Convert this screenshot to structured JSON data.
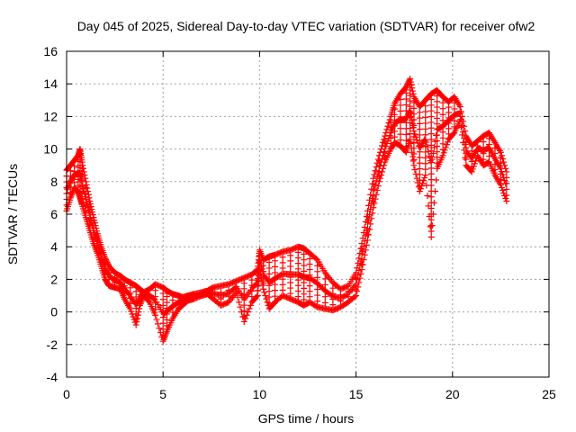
{
  "chart_data": {
    "type": "scatter",
    "title": "Day 045 of 2025, Sidereal Day-to-day VTEC variation (SDTVAR) for receiver ofw2",
    "xlabel": "GPS time / hours",
    "ylabel": "SDTVAR / TECUs",
    "xlim": [
      0,
      25
    ],
    "ylim": [
      -4,
      16
    ],
    "x_ticks": [
      0,
      5,
      10,
      15,
      20,
      25
    ],
    "y_ticks": [
      -4,
      -2,
      0,
      2,
      4,
      6,
      8,
      10,
      12,
      14,
      16
    ],
    "grid": true,
    "marker": "+",
    "color": "#ff0000",
    "series": [
      {
        "name": "SDTVAR",
        "x": [
          0.0,
          0.2,
          0.4,
          0.6,
          0.7,
          0.8,
          1.0,
          1.2,
          1.4,
          1.6,
          1.8,
          2.0,
          2.2,
          2.5,
          2.8,
          3.0,
          3.3,
          3.6,
          3.8,
          4.0,
          4.3,
          4.6,
          5.0,
          5.2,
          5.5,
          5.8,
          6.0,
          6.3,
          6.6,
          7.0,
          7.3,
          7.6,
          8.0,
          8.4,
          8.8,
          9.2,
          9.6,
          9.9,
          10.0,
          10.2,
          10.5,
          10.8,
          11.2,
          11.6,
          12.0,
          12.3,
          12.6,
          13.0,
          13.4,
          13.8,
          14.2,
          14.6,
          15.0,
          15.3,
          15.6,
          15.9,
          16.2,
          16.5,
          16.8,
          17.0,
          17.3,
          17.6,
          17.8,
          18.0,
          18.3,
          18.6,
          18.9,
          19.2,
          19.5,
          19.8,
          20.1,
          20.4,
          20.7,
          21.0,
          21.3,
          21.6,
          21.9,
          22.2,
          22.5,
          22.8
        ],
        "values": [
          8.7,
          9.0,
          9.3,
          9.6,
          10.0,
          9.2,
          8.0,
          6.8,
          5.8,
          4.8,
          4.0,
          3.3,
          2.8,
          2.4,
          2.2,
          2.0,
          1.8,
          1.6,
          1.4,
          1.2,
          1.4,
          1.7,
          1.5,
          1.3,
          1.1,
          1.0,
          0.9,
          1.0,
          1.1,
          1.2,
          1.3,
          1.5,
          1.6,
          1.7,
          1.9,
          2.1,
          2.3,
          2.6,
          3.8,
          3.2,
          3.4,
          3.5,
          3.7,
          3.8,
          4.0,
          3.9,
          3.6,
          3.2,
          2.4,
          1.8,
          1.4,
          1.6,
          2.4,
          4.2,
          6.2,
          8.2,
          9.6,
          10.8,
          12.0,
          12.8,
          13.4,
          13.8,
          14.3,
          13.2,
          12.6,
          13.0,
          13.4,
          13.6,
          13.2,
          12.9,
          13.2,
          12.6,
          10.8,
          10.2,
          10.5,
          10.8,
          11.0,
          10.4,
          9.8,
          8.6
        ],
        "values_low": [
          6.2,
          7.0,
          7.6,
          7.4,
          7.0,
          6.6,
          5.8,
          5.0,
          4.2,
          3.6,
          2.8,
          2.0,
          1.6,
          1.5,
          1.4,
          0.8,
          0.2,
          -0.8,
          0.4,
          1.0,
          0.6,
          -0.2,
          -1.8,
          -1.2,
          -0.4,
          0.2,
          0.4,
          0.7,
          0.8,
          1.0,
          1.1,
          0.8,
          0.4,
          0.6,
          1.2,
          -0.6,
          0.6,
          1.0,
          2.8,
          1.4,
          0.2,
          0.6,
          1.0,
          0.8,
          0.6,
          0.4,
          0.6,
          0.3,
          0.2,
          0.1,
          0.3,
          0.6,
          1.0,
          2.6,
          4.4,
          6.4,
          8.0,
          9.2,
          10.0,
          10.4,
          10.2,
          9.8,
          10.6,
          9.0,
          7.4,
          8.4,
          4.6,
          8.8,
          9.6,
          10.6,
          11.0,
          11.8,
          9.0,
          8.6,
          9.6,
          9.0,
          9.2,
          8.4,
          7.8,
          6.8
        ]
      }
    ]
  }
}
